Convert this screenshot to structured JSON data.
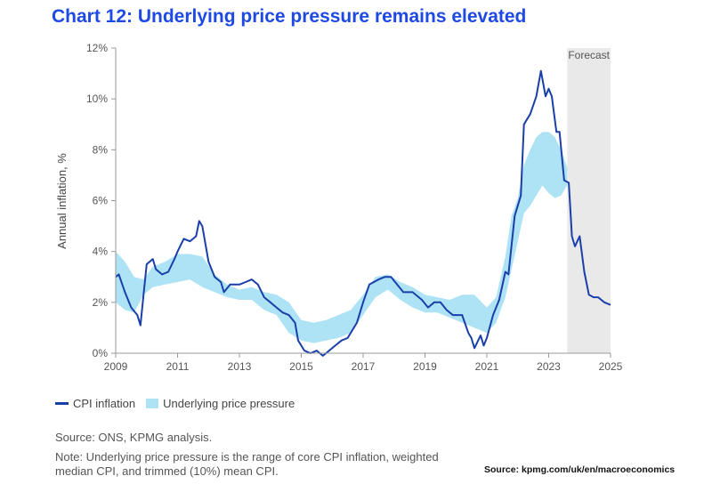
{
  "chart_data": {
    "type": "line",
    "title": "Chart 12: Underlying price pressure remains elevated",
    "ylabel": "Annual inflation, %",
    "xlabel": "",
    "xlim": [
      2009,
      2025
    ],
    "ylim": [
      0,
      12
    ],
    "x_ticks": [
      2009,
      2011,
      2013,
      2015,
      2017,
      2019,
      2021,
      2023,
      2025
    ],
    "y_ticks": [
      0,
      2,
      4,
      6,
      8,
      10,
      12
    ],
    "y_tick_labels": [
      "0%",
      "2%",
      "4%",
      "6%",
      "8%",
      "10%",
      "12%"
    ],
    "forecast": {
      "label": "Forecast",
      "start": 2023.6,
      "end": 2025
    },
    "series": [
      {
        "name": "CPI inflation",
        "kind": "line",
        "color": "#1a3fa8",
        "x": [
          2009.0,
          2009.1,
          2009.3,
          2009.5,
          2009.7,
          2009.8,
          2010.0,
          2010.2,
          2010.3,
          2010.5,
          2010.7,
          2010.9,
          2011.0,
          2011.2,
          2011.4,
          2011.5,
          2011.6,
          2011.7,
          2011.8,
          2012.0,
          2012.2,
          2012.4,
          2012.5,
          2012.7,
          2013.0,
          2013.2,
          2013.4,
          2013.6,
          2013.8,
          2014.0,
          2014.2,
          2014.4,
          2014.6,
          2014.8,
          2014.9,
          2015.1,
          2015.3,
          2015.5,
          2015.7,
          2015.9,
          2016.1,
          2016.3,
          2016.5,
          2016.7,
          2016.8,
          2017.0,
          2017.2,
          2017.5,
          2017.7,
          2017.9,
          2018.1,
          2018.3,
          2018.6,
          2018.9,
          2019.1,
          2019.3,
          2019.5,
          2019.7,
          2019.9,
          2020.2,
          2020.4,
          2020.5,
          2020.6,
          2020.8,
          2020.9,
          2021.0,
          2021.2,
          2021.4,
          2021.6,
          2021.7,
          2021.9,
          2022.1,
          2022.2,
          2022.4,
          2022.6,
          2022.75,
          2022.9,
          2023.0,
          2023.1,
          2023.25,
          2023.35,
          2023.5,
          2023.65,
          2023.75,
          2023.85,
          2024.0,
          2024.15,
          2024.3,
          2024.45,
          2024.6,
          2024.8,
          2025.0
        ],
        "values": [
          3.0,
          3.1,
          2.4,
          1.8,
          1.5,
          1.1,
          3.5,
          3.7,
          3.3,
          3.1,
          3.2,
          3.7,
          4.0,
          4.5,
          4.4,
          4.5,
          4.6,
          5.2,
          5.0,
          3.6,
          3.0,
          2.8,
          2.4,
          2.7,
          2.7,
          2.8,
          2.9,
          2.7,
          2.2,
          2.0,
          1.8,
          1.6,
          1.5,
          1.2,
          0.5,
          0.1,
          0.0,
          0.1,
          -0.1,
          0.1,
          0.3,
          0.5,
          0.6,
          1.0,
          1.2,
          2.0,
          2.7,
          2.9,
          3.0,
          3.0,
          2.7,
          2.4,
          2.4,
          2.1,
          1.8,
          2.0,
          2.0,
          1.7,
          1.5,
          1.5,
          0.8,
          0.6,
          0.2,
          0.7,
          0.3,
          0.6,
          1.5,
          2.1,
          3.2,
          3.1,
          5.4,
          6.2,
          9.0,
          9.4,
          10.1,
          11.1,
          10.1,
          10.4,
          10.1,
          8.7,
          8.7,
          6.8,
          6.7,
          4.6,
          4.2,
          4.6,
          3.2,
          2.3,
          2.2,
          2.2,
          2.0,
          1.9
        ]
      },
      {
        "name": "Underlying price pressure",
        "kind": "band",
        "color": "#aee3f6",
        "x": [
          2009.0,
          2009.3,
          2009.6,
          2009.9,
          2010.2,
          2010.6,
          2011.0,
          2011.4,
          2011.8,
          2012.2,
          2012.6,
          2013.0,
          2013.4,
          2013.8,
          2014.2,
          2014.6,
          2015.0,
          2015.4,
          2015.8,
          2016.2,
          2016.6,
          2017.0,
          2017.4,
          2017.8,
          2018.2,
          2018.6,
          2019.0,
          2019.4,
          2019.8,
          2020.2,
          2020.6,
          2021.0,
          2021.3,
          2021.6,
          2021.8,
          2022.0,
          2022.2,
          2022.4,
          2022.6,
          2022.8,
          2023.0,
          2023.2,
          2023.4,
          2023.6
        ],
        "upper": [
          4.0,
          3.6,
          3.0,
          2.9,
          3.4,
          3.6,
          3.9,
          3.9,
          3.8,
          3.1,
          2.7,
          2.5,
          2.6,
          2.4,
          2.3,
          2.0,
          1.3,
          1.2,
          1.3,
          1.5,
          1.7,
          2.3,
          3.0,
          3.1,
          2.8,
          2.6,
          2.3,
          2.2,
          2.1,
          2.3,
          2.3,
          1.8,
          2.2,
          3.8,
          5.4,
          6.1,
          7.4,
          8.0,
          8.5,
          8.7,
          8.7,
          8.5,
          8.0,
          7.3
        ],
        "lower": [
          2.0,
          1.7,
          1.6,
          2.3,
          2.6,
          2.7,
          2.8,
          2.9,
          2.6,
          2.4,
          2.2,
          2.1,
          2.1,
          1.7,
          1.5,
          0.8,
          0.5,
          0.4,
          0.5,
          0.6,
          0.8,
          1.5,
          2.2,
          2.5,
          2.1,
          1.8,
          1.6,
          1.6,
          1.4,
          1.2,
          1.0,
          0.8,
          1.2,
          2.2,
          3.3,
          4.4,
          5.5,
          5.8,
          6.2,
          6.6,
          6.3,
          6.1,
          6.2,
          6.6
        ]
      }
    ]
  },
  "legend": {
    "items": [
      {
        "label": "CPI inflation"
      },
      {
        "label": "Underlying price pressure"
      }
    ]
  },
  "footer": {
    "source": "Source: ONS, KPMG analysis.",
    "note": "Note: Underlying price pressure is the range of core CPI inflation, weighted median CPI, and trimmed (10%) mean CPI.",
    "credit": "Source: kpmg.com/uk/en/macroeconomics"
  }
}
